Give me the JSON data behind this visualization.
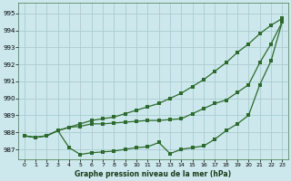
{
  "title": "Graphe pression niveau de la mer (hPa)",
  "bg_color": "#cce8ec",
  "grid_color": "#aaccd0",
  "line_color": "#2d6a2d",
  "ylim": [
    986.4,
    995.6
  ],
  "yticks": [
    987,
    988,
    989,
    990,
    991,
    992,
    993,
    994,
    995
  ],
  "xlim": [
    -0.5,
    23.5
  ],
  "xticks": [
    0,
    1,
    2,
    3,
    4,
    5,
    6,
    7,
    8,
    9,
    10,
    11,
    12,
    13,
    14,
    15,
    16,
    17,
    18,
    19,
    20,
    21,
    22,
    23
  ],
  "s1": [
    987.8,
    987.7,
    987.8,
    988.1,
    988.3,
    988.5,
    988.7,
    988.8,
    988.9,
    989.1,
    989.3,
    989.5,
    989.7,
    990.0,
    990.3,
    990.7,
    991.1,
    991.6,
    992.1,
    992.7,
    993.2,
    993.8,
    994.3,
    994.7
  ],
  "s2": [
    987.8,
    987.7,
    987.8,
    988.1,
    987.1,
    986.7,
    986.8,
    986.85,
    986.9,
    987.0,
    987.1,
    987.15,
    987.4,
    986.75,
    987.0,
    987.1,
    987.2,
    987.6,
    988.1,
    988.5,
    989.0,
    990.8,
    992.2,
    994.5
  ],
  "s3": [
    987.8,
    987.7,
    987.8,
    988.1,
    988.3,
    988.35,
    988.5,
    988.5,
    988.55,
    988.6,
    988.65,
    988.7,
    988.7,
    988.75,
    988.8,
    989.1,
    989.4,
    989.7,
    989.9,
    990.35,
    990.8,
    992.1,
    993.2,
    994.5
  ]
}
